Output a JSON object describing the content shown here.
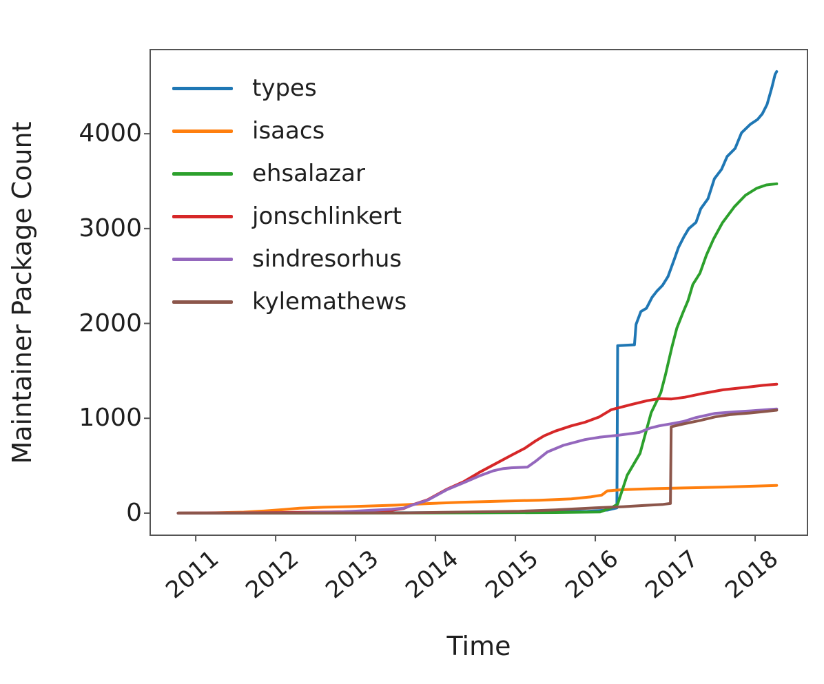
{
  "figure": {
    "background": "#ffffff",
    "axis_color": "#545454",
    "text_color": "#1f1f1f"
  },
  "chart_data": {
    "type": "line",
    "title": "",
    "xlabel": "Time",
    "ylabel": "Maintainer Package Count",
    "xlim": [
      2010.43,
      2018.655
    ],
    "ylim": [
      -233,
      4887
    ],
    "grid": false,
    "legend_position": "upper left",
    "x_ticks": [
      2011,
      2012,
      2013,
      2014,
      2015,
      2016,
      2017,
      2018
    ],
    "x_tick_labels": [
      "2011",
      "2012",
      "2013",
      "2014",
      "2015",
      "2016",
      "2017",
      "2018"
    ],
    "y_ticks": [
      0,
      1000,
      2000,
      3000,
      4000
    ],
    "y_tick_labels": [
      "0",
      "1000",
      "2000",
      "3000",
      "4000"
    ],
    "series": [
      {
        "name": "types",
        "color": "#1f77b4",
        "points": [
          [
            2010.78,
            0
          ],
          [
            2012.5,
            2
          ],
          [
            2014.0,
            5
          ],
          [
            2015.2,
            10
          ],
          [
            2015.9,
            18
          ],
          [
            2016.15,
            32
          ],
          [
            2016.27,
            55
          ],
          [
            2016.28,
            1765
          ],
          [
            2016.49,
            1775
          ],
          [
            2016.51,
            1990
          ],
          [
            2016.57,
            2125
          ],
          [
            2016.64,
            2160
          ],
          [
            2016.71,
            2275
          ],
          [
            2016.77,
            2340
          ],
          [
            2016.84,
            2400
          ],
          [
            2016.91,
            2495
          ],
          [
            2016.99,
            2680
          ],
          [
            2017.04,
            2800
          ],
          [
            2017.11,
            2915
          ],
          [
            2017.17,
            3000
          ],
          [
            2017.26,
            3065
          ],
          [
            2017.32,
            3210
          ],
          [
            2017.41,
            3315
          ],
          [
            2017.49,
            3525
          ],
          [
            2017.58,
            3625
          ],
          [
            2017.65,
            3760
          ],
          [
            2017.75,
            3845
          ],
          [
            2017.83,
            4010
          ],
          [
            2017.94,
            4100
          ],
          [
            2018.03,
            4150
          ],
          [
            2018.09,
            4210
          ],
          [
            2018.15,
            4310
          ],
          [
            2018.21,
            4490
          ],
          [
            2018.25,
            4625
          ],
          [
            2018.27,
            4655
          ]
        ]
      },
      {
        "name": "isaacs",
        "color": "#ff7f0e",
        "points": [
          [
            2010.78,
            0
          ],
          [
            2011.25,
            4
          ],
          [
            2011.6,
            10
          ],
          [
            2011.85,
            22
          ],
          [
            2012.1,
            38
          ],
          [
            2012.3,
            52
          ],
          [
            2012.6,
            62
          ],
          [
            2013.0,
            70
          ],
          [
            2013.5,
            84
          ],
          [
            2013.9,
            100
          ],
          [
            2014.3,
            114
          ],
          [
            2014.8,
            126
          ],
          [
            2015.3,
            136
          ],
          [
            2015.7,
            150
          ],
          [
            2015.95,
            172
          ],
          [
            2016.08,
            190
          ],
          [
            2016.15,
            235
          ],
          [
            2016.35,
            247
          ],
          [
            2016.7,
            257
          ],
          [
            2017.1,
            265
          ],
          [
            2017.6,
            275
          ],
          [
            2018.0,
            284
          ],
          [
            2018.27,
            292
          ]
        ]
      },
      {
        "name": "ehsalazar",
        "color": "#2ca02c",
        "points": [
          [
            2010.78,
            0
          ],
          [
            2013.5,
            1
          ],
          [
            2014.5,
            3
          ],
          [
            2015.5,
            7
          ],
          [
            2016.06,
            12
          ],
          [
            2016.2,
            55
          ],
          [
            2016.28,
            95
          ],
          [
            2016.4,
            400
          ],
          [
            2016.56,
            630
          ],
          [
            2016.7,
            1060
          ],
          [
            2016.82,
            1270
          ],
          [
            2016.88,
            1465
          ],
          [
            2016.96,
            1755
          ],
          [
            2017.02,
            1950
          ],
          [
            2017.1,
            2120
          ],
          [
            2017.16,
            2240
          ],
          [
            2017.22,
            2410
          ],
          [
            2017.31,
            2530
          ],
          [
            2017.39,
            2720
          ],
          [
            2017.48,
            2890
          ],
          [
            2017.59,
            3060
          ],
          [
            2017.74,
            3230
          ],
          [
            2017.88,
            3352
          ],
          [
            2018.02,
            3425
          ],
          [
            2018.14,
            3460
          ],
          [
            2018.27,
            3472
          ]
        ]
      },
      {
        "name": "jonschlinkert",
        "color": "#d62728",
        "points": [
          [
            2010.78,
            0
          ],
          [
            2011.5,
            3
          ],
          [
            2012.0,
            6
          ],
          [
            2012.7,
            12
          ],
          [
            2013.2,
            20
          ],
          [
            2013.45,
            30
          ],
          [
            2013.6,
            48
          ],
          [
            2013.72,
            90
          ],
          [
            2013.9,
            140
          ],
          [
            2014.15,
            255
          ],
          [
            2014.35,
            330
          ],
          [
            2014.55,
            430
          ],
          [
            2014.75,
            520
          ],
          [
            2014.95,
            610
          ],
          [
            2015.12,
            685
          ],
          [
            2015.25,
            760
          ],
          [
            2015.36,
            815
          ],
          [
            2015.5,
            865
          ],
          [
            2015.7,
            920
          ],
          [
            2015.87,
            958
          ],
          [
            2016.05,
            1015
          ],
          [
            2016.2,
            1090
          ],
          [
            2016.45,
            1145
          ],
          [
            2016.65,
            1185
          ],
          [
            2016.8,
            1207
          ],
          [
            2016.95,
            1203
          ],
          [
            2017.12,
            1222
          ],
          [
            2017.35,
            1262
          ],
          [
            2017.6,
            1300
          ],
          [
            2017.9,
            1328
          ],
          [
            2018.1,
            1347
          ],
          [
            2018.27,
            1360
          ]
        ]
      },
      {
        "name": "sindresorhus",
        "color": "#9467bd",
        "points": [
          [
            2010.78,
            0
          ],
          [
            2012.3,
            3
          ],
          [
            2012.8,
            12
          ],
          [
            2013.2,
            30
          ],
          [
            2013.45,
            40
          ],
          [
            2013.6,
            52
          ],
          [
            2013.72,
            88
          ],
          [
            2013.9,
            135
          ],
          [
            2014.15,
            250
          ],
          [
            2014.35,
            320
          ],
          [
            2014.55,
            392
          ],
          [
            2014.72,
            445
          ],
          [
            2014.85,
            470
          ],
          [
            2014.95,
            478
          ],
          [
            2015.15,
            485
          ],
          [
            2015.25,
            545
          ],
          [
            2015.4,
            645
          ],
          [
            2015.6,
            715
          ],
          [
            2015.87,
            775
          ],
          [
            2016.05,
            800
          ],
          [
            2016.3,
            822
          ],
          [
            2016.55,
            850
          ],
          [
            2016.68,
            895
          ],
          [
            2016.8,
            920
          ],
          [
            2016.95,
            942
          ],
          [
            2017.1,
            965
          ],
          [
            2017.25,
            1005
          ],
          [
            2017.5,
            1052
          ],
          [
            2017.75,
            1068
          ],
          [
            2017.95,
            1078
          ],
          [
            2018.15,
            1090
          ],
          [
            2018.27,
            1098
          ]
        ]
      },
      {
        "name": "kylemathews",
        "color": "#8c564b",
        "points": [
          [
            2010.78,
            0
          ],
          [
            2013.6,
            2
          ],
          [
            2014.1,
            8
          ],
          [
            2014.6,
            14
          ],
          [
            2015.05,
            20
          ],
          [
            2015.5,
            34
          ],
          [
            2016.0,
            56
          ],
          [
            2016.35,
            68
          ],
          [
            2016.6,
            80
          ],
          [
            2016.85,
            92
          ],
          [
            2016.94,
            102
          ],
          [
            2016.95,
            910
          ],
          [
            2017.1,
            940
          ],
          [
            2017.3,
            975
          ],
          [
            2017.5,
            1015
          ],
          [
            2017.7,
            1040
          ],
          [
            2017.93,
            1055
          ],
          [
            2018.1,
            1070
          ],
          [
            2018.27,
            1085
          ]
        ]
      }
    ]
  }
}
